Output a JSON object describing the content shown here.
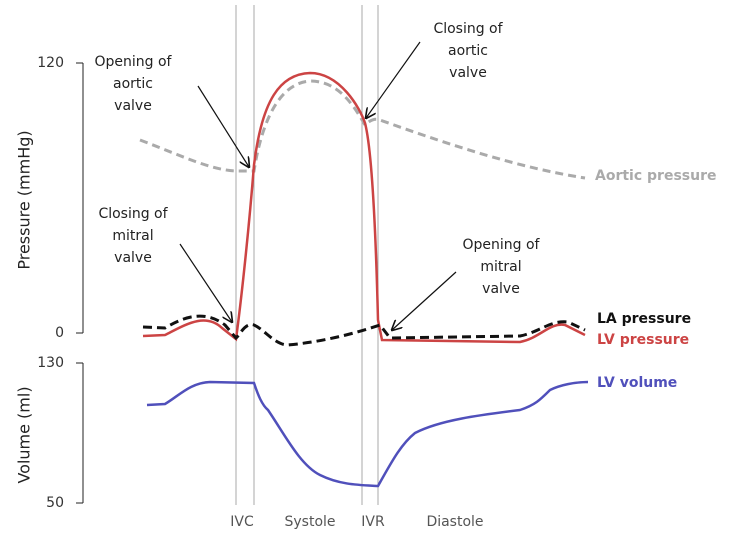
{
  "pressure_axis": {
    "label": "Pressure (mmHg)",
    "ticks": [
      "120",
      "0"
    ]
  },
  "volume_axis": {
    "label": "Volume (ml)",
    "ticks": [
      "130",
      "50"
    ]
  },
  "phases": [
    "IVC",
    "Systole",
    "IVR",
    "Diastole"
  ],
  "annotations": [
    [
      "Opening of",
      "aortic",
      "valve"
    ],
    [
      "Closing of",
      "aortic",
      "valve"
    ],
    [
      "Closing of",
      "mitral",
      "valve"
    ],
    [
      "Opening of",
      "mitral",
      "valve"
    ]
  ],
  "curve_labels": [
    "Aortic pressure",
    "LA pressure",
    "LV pressure",
    "LV volume"
  ]
}
